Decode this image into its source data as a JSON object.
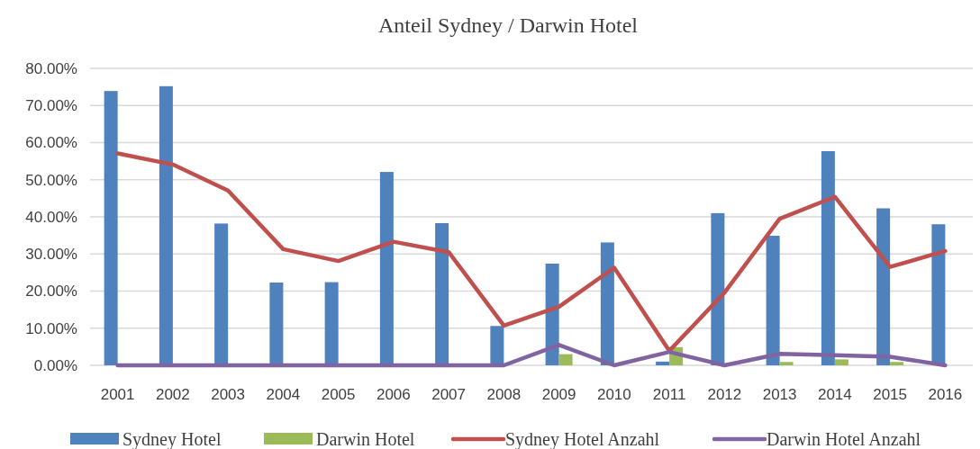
{
  "chart_data": {
    "type": "bar",
    "title": "Anteil Sydney / Darwin Hotel",
    "categories": [
      "2001",
      "2002",
      "2003",
      "2004",
      "2005",
      "2006",
      "2007",
      "2008",
      "2009",
      "2010",
      "2011",
      "2012",
      "2013",
      "2014",
      "2015",
      "2016"
    ],
    "series": [
      {
        "name": "Sydney Hotel",
        "color": "#4f81bd",
        "values": [
          73.9,
          75.2,
          38.2,
          22.3,
          22.4,
          52.1,
          38.3,
          10.6,
          27.4,
          33.1,
          1.0,
          41.0,
          34.9,
          57.7,
          42.3,
          38.0
        ]
      },
      {
        "name": "Darwin Hotel",
        "color": "#9bbb59",
        "values": [
          0,
          0,
          0,
          0,
          0,
          0,
          0,
          0,
          3.0,
          0,
          4.9,
          0,
          0.9,
          1.6,
          0.9,
          0
        ]
      },
      {
        "name": "Sydney Hotel Anzahl",
        "type": "line",
        "color": "#c0504d",
        "values": [
          57.1,
          54.1,
          47.1,
          31.3,
          28.1,
          33.3,
          30.5,
          10.7,
          15.8,
          26.3,
          3.9,
          19.6,
          39.5,
          45.4,
          26.5,
          30.8
        ]
      },
      {
        "name": "Darwin Hotel Anzahl",
        "type": "line",
        "color": "#8064a2",
        "values": [
          0,
          0,
          0,
          0,
          0,
          0,
          0,
          0,
          5.5,
          0,
          3.6,
          0,
          3.1,
          2.7,
          2.3,
          0
        ]
      }
    ],
    "ylim": [
      0,
      80
    ],
    "yticks": [
      {
        "value": 0,
        "label": "0.00%"
      },
      {
        "value": 10,
        "label": "10.00%"
      },
      {
        "value": 20,
        "label": "20.00%"
      },
      {
        "value": 30,
        "label": "30.00%"
      },
      {
        "value": 40,
        "label": "40.00%"
      },
      {
        "value": 50,
        "label": "50.00%"
      },
      {
        "value": 60,
        "label": "60.00%"
      },
      {
        "value": 70,
        "label": "70.00%"
      },
      {
        "value": 80,
        "label": "80.00%"
      }
    ],
    "grid": "y",
    "legend": "bottom",
    "marker": "none",
    "line_style": "solid"
  }
}
